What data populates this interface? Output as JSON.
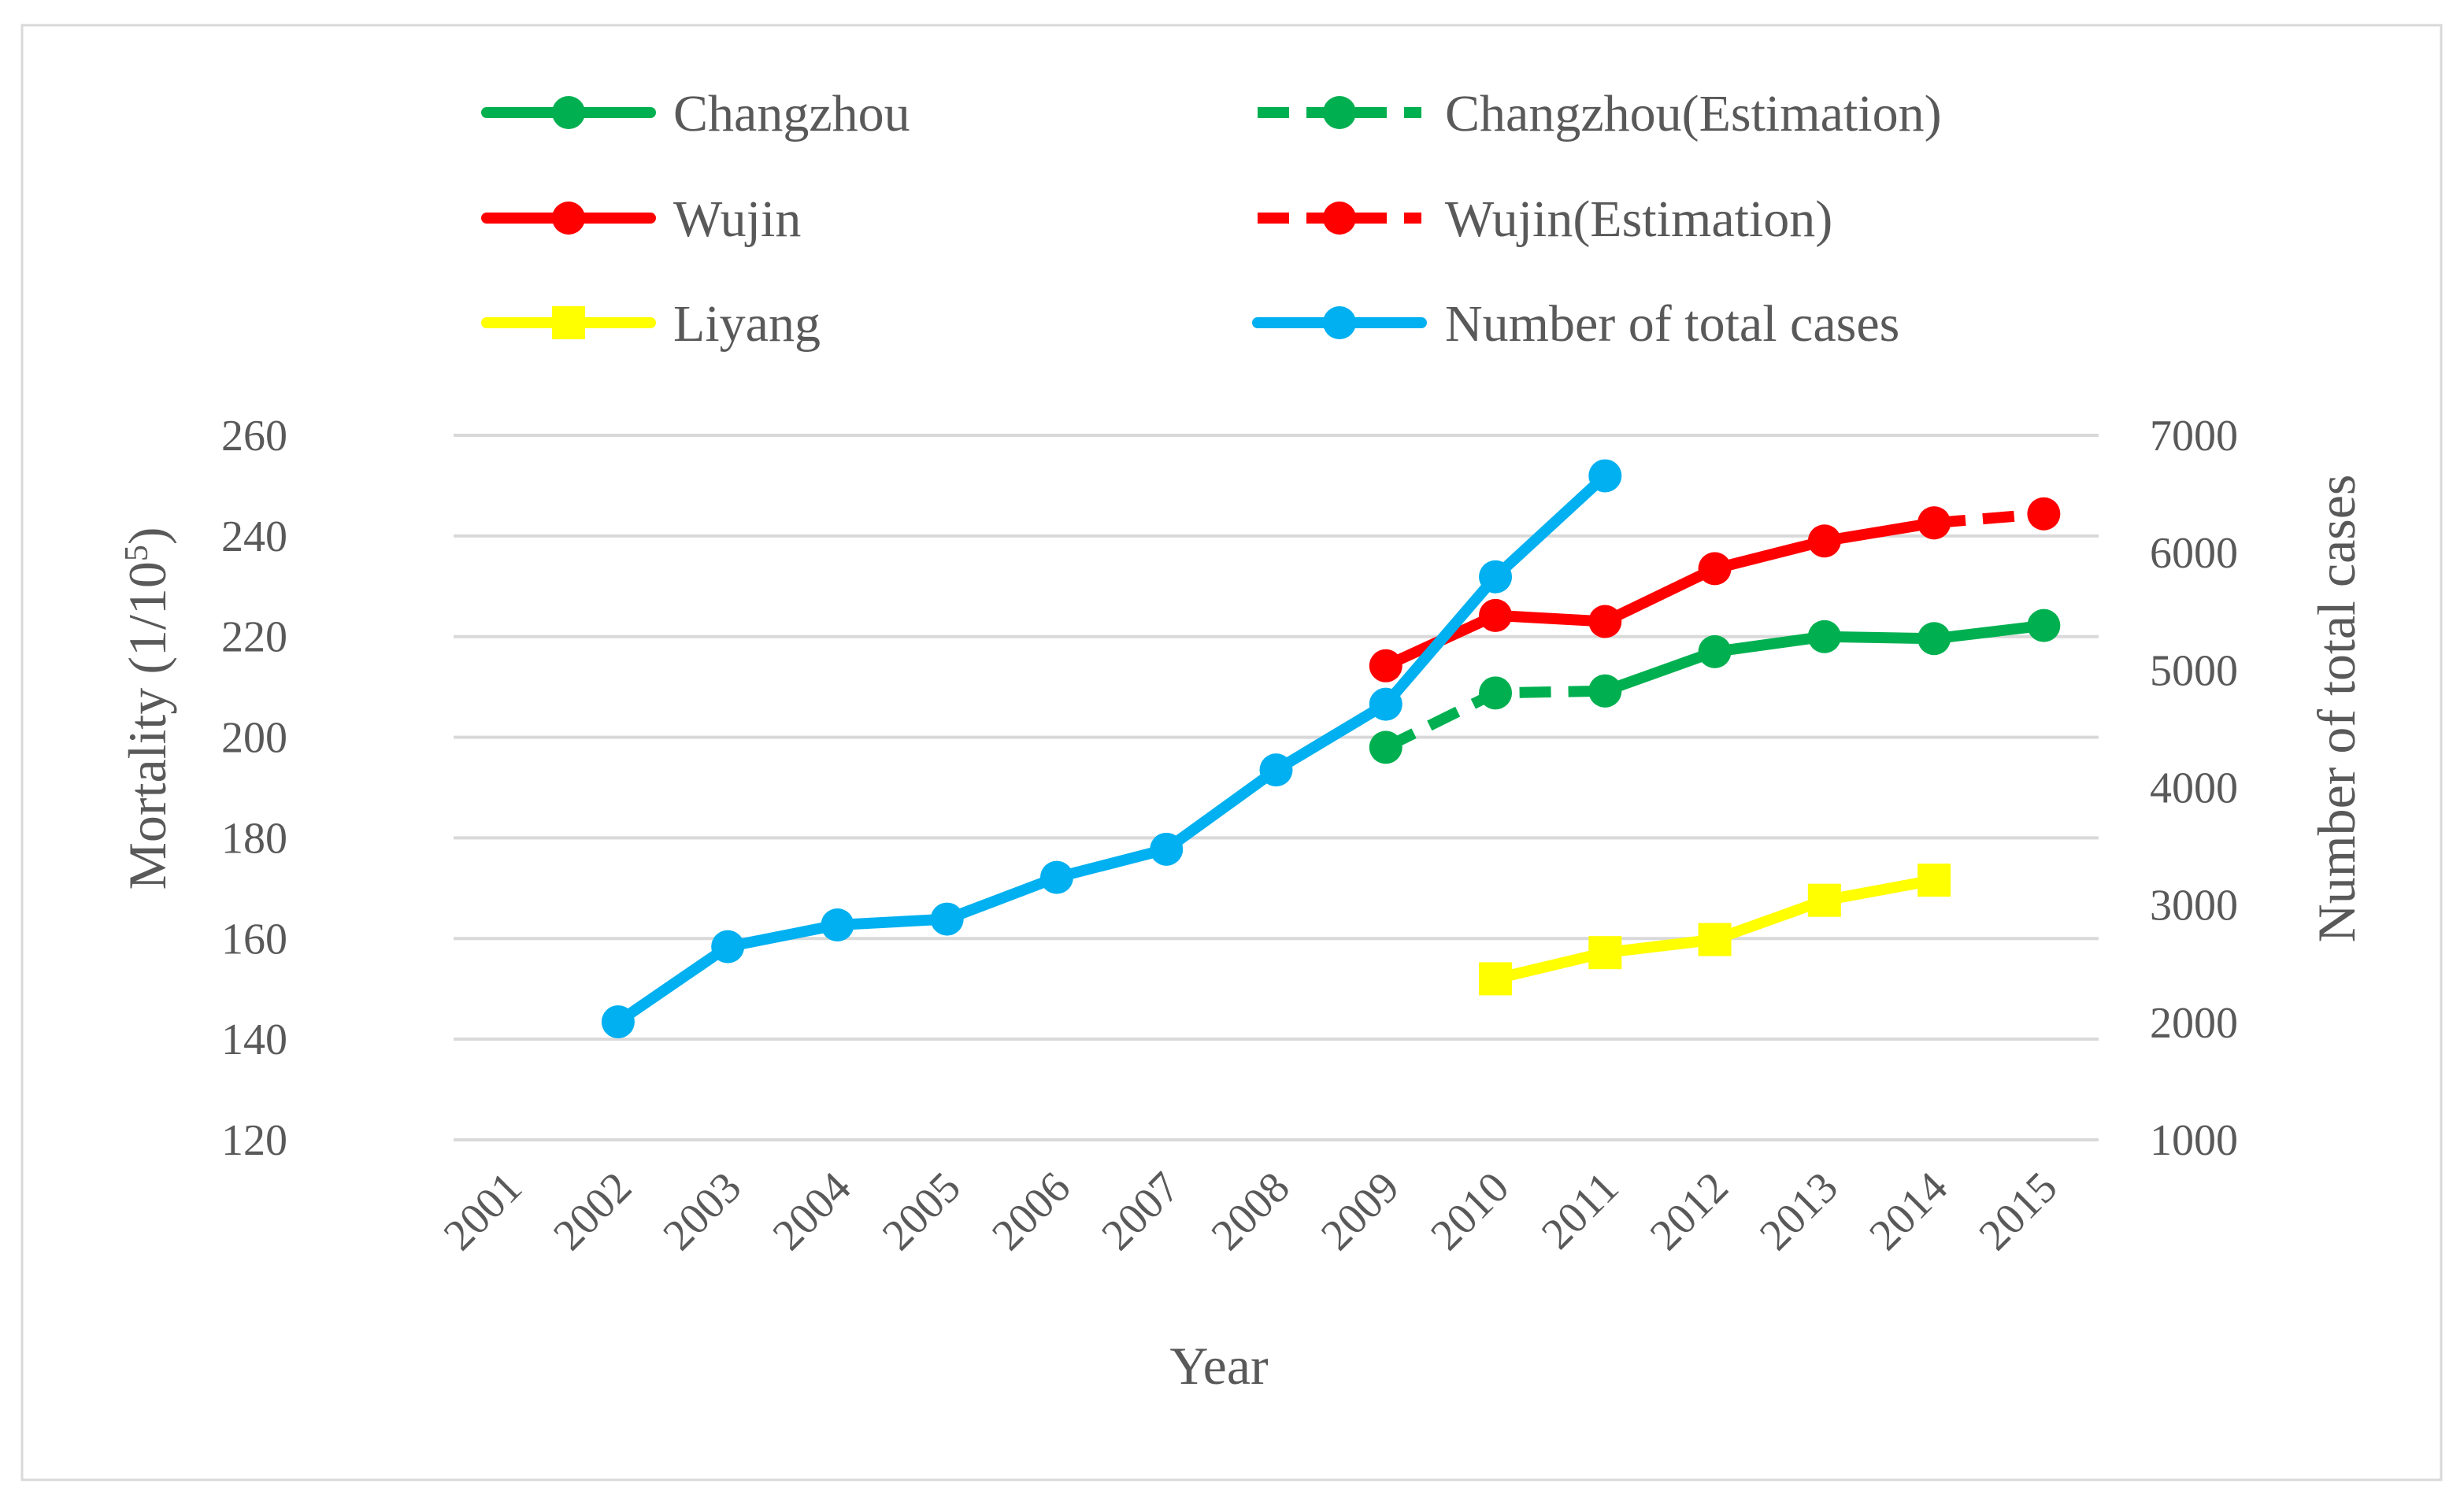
{
  "chart_data": {
    "type": "line",
    "title": "",
    "xlabel": "Year",
    "ylabel_main": "Mortality (1/10",
    "ylabel_sup": "5",
    "ylabel_close": ")",
    "y2label": "Number of total cases",
    "categories": [
      "2001",
      "2002",
      "2003",
      "2004",
      "2005",
      "2006",
      "2007",
      "2008",
      "2009",
      "2010",
      "2011",
      "2012",
      "2013",
      "2014",
      "2015"
    ],
    "y_ticks": [
      "120",
      "140",
      "160",
      "180",
      "200",
      "220",
      "240",
      "260"
    ],
    "y2_ticks": [
      "1000",
      "2000",
      "3000",
      "4000",
      "5000",
      "6000",
      "7000"
    ],
    "ylim": [
      120,
      260
    ],
    "y2lim": [
      1000,
      7000
    ],
    "legend_position": "top",
    "series": [
      {
        "name": "Changzhou",
        "axis": "left",
        "color": "#00B050",
        "dash": "solid",
        "marker": "circle",
        "values": [
          null,
          null,
          null,
          null,
          null,
          null,
          null,
          null,
          null,
          null,
          209.2,
          217,
          220,
          219.6,
          222.2
        ]
      },
      {
        "name": "Changzhou(Estimation)",
        "axis": "left",
        "color": "#00B050",
        "dash": "dashed",
        "marker": "circle",
        "values": [
          null,
          null,
          null,
          null,
          null,
          null,
          null,
          null,
          198,
          208.8,
          209.2,
          null,
          null,
          null,
          null
        ]
      },
      {
        "name": "Wujin",
        "axis": "left",
        "color": "#FF0000",
        "dash": "solid",
        "marker": "circle",
        "values": [
          null,
          null,
          null,
          null,
          null,
          null,
          null,
          null,
          214.2,
          224.2,
          223,
          233.5,
          239,
          242.6,
          null
        ]
      },
      {
        "name": "Wujin(Estimation)",
        "axis": "left",
        "color": "#FF0000",
        "dash": "dashed",
        "marker": "circle",
        "values": [
          null,
          null,
          null,
          null,
          null,
          null,
          null,
          null,
          null,
          null,
          null,
          null,
          null,
          242.6,
          244.4
        ]
      },
      {
        "name": "Liyang",
        "axis": "left",
        "color": "#FFFF00",
        "dash": "solid",
        "marker": "square",
        "values": [
          null,
          null,
          null,
          null,
          null,
          null,
          null,
          null,
          null,
          152,
          157.2,
          159.8,
          167.6,
          171.6,
          null
        ]
      },
      {
        "name": "Number of total cases",
        "axis": "right",
        "color": "#00B0F0",
        "dash": "solid",
        "marker": "circle",
        "values": [
          null,
          2005,
          2645,
          2830,
          2880,
          3235,
          3475,
          4150,
          4710,
          5795,
          6655,
          null,
          null,
          null,
          null
        ]
      }
    ]
  }
}
